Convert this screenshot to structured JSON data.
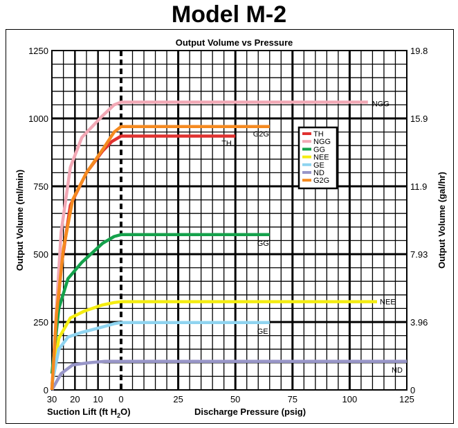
{
  "page_title": "Model M-2",
  "chart_data": {
    "type": "line",
    "title": "Output Volume vs Pressure",
    "ylabel": "Output Volume (ml/min)",
    "y2label": "Output Volume (gal/hr)",
    "xlabel_left": "Suction Lift (ft H",
    "xlabel_left_sub": "2",
    "xlabel_left_end": "O)",
    "xlabel_right": "Discharge Pressure (psig)",
    "ylim": [
      0,
      1250
    ],
    "yticks": [
      0,
      250,
      500,
      750,
      1000,
      1250
    ],
    "y2ticks": [
      "0",
      "3.96",
      "7.93",
      "11.9",
      "15.9",
      "19.8"
    ],
    "suction_ticks": [
      30,
      20,
      10,
      0
    ],
    "suction_range": [
      30,
      0
    ],
    "pressure_ticks": [
      0,
      25,
      50,
      75,
      100,
      125
    ],
    "pressure_range": [
      0,
      125
    ],
    "series": [
      {
        "name": "TH",
        "color": "#e0312f",
        "end_label": "TH",
        "end_psig": 50,
        "suction": [
          [
            30,
            0
          ],
          [
            28,
            250
          ],
          [
            26,
            450
          ],
          [
            22,
            680
          ],
          [
            15,
            800
          ],
          [
            8,
            880
          ],
          [
            4,
            915
          ],
          [
            0,
            935
          ]
        ],
        "pressure": [
          [
            0,
            935
          ],
          [
            50,
            935
          ]
        ]
      },
      {
        "name": "NGG",
        "color": "#f2a8b5",
        "end_label": "NGG",
        "end_psig": 108,
        "suction": [
          [
            30,
            0
          ],
          [
            28,
            300
          ],
          [
            26,
            580
          ],
          [
            22,
            820
          ],
          [
            17,
            930
          ],
          [
            8,
            1010
          ],
          [
            3,
            1050
          ],
          [
            0,
            1060
          ]
        ],
        "pressure": [
          [
            0,
            1060
          ],
          [
            108,
            1060
          ]
        ]
      },
      {
        "name": "GG",
        "color": "#14a14b",
        "end_label": "GG",
        "end_psig": 65,
        "suction": [
          [
            30,
            60
          ],
          [
            27,
            300
          ],
          [
            23,
            410
          ],
          [
            17,
            470
          ],
          [
            8,
            540
          ],
          [
            3,
            565
          ],
          [
            0,
            572
          ]
        ],
        "pressure": [
          [
            0,
            572
          ],
          [
            65,
            572
          ]
        ]
      },
      {
        "name": "NEE",
        "color": "#f4ec11",
        "end_label": "NEE",
        "end_psig": 112,
        "suction": [
          [
            30,
            20
          ],
          [
            27,
            190
          ],
          [
            22,
            265
          ],
          [
            16,
            290
          ],
          [
            8,
            313
          ],
          [
            3,
            322
          ],
          [
            0,
            325
          ]
        ],
        "pressure": [
          [
            0,
            325
          ],
          [
            112,
            325
          ]
        ]
      },
      {
        "name": "GE",
        "color": "#8fd4f0",
        "end_label": "GE",
        "end_psig": 65,
        "suction": [
          [
            30,
            20
          ],
          [
            27,
            150
          ],
          [
            23,
            195
          ],
          [
            17,
            212
          ],
          [
            8,
            232
          ],
          [
            3,
            244
          ],
          [
            0,
            248
          ]
        ],
        "pressure": [
          [
            0,
            248
          ],
          [
            65,
            248
          ]
        ]
      },
      {
        "name": "ND",
        "color": "#9896c8",
        "end_label": "ND",
        "end_psig": 125,
        "suction": [
          [
            30,
            0
          ],
          [
            26,
            60
          ],
          [
            21,
            92
          ],
          [
            14,
            100
          ],
          [
            7,
            105
          ],
          [
            0,
            105
          ]
        ],
        "pressure": [
          [
            0,
            105
          ],
          [
            125,
            105
          ]
        ]
      },
      {
        "name": "G2G",
        "color": "#f58a20",
        "end_label": "G2G",
        "end_psig": 65,
        "suction": [
          [
            30,
            0
          ],
          [
            28,
            280
          ],
          [
            25,
            520
          ],
          [
            21,
            700
          ],
          [
            15,
            800
          ],
          [
            8,
            885
          ],
          [
            3,
            950
          ],
          [
            0,
            970
          ]
        ],
        "pressure": [
          [
            0,
            970
          ],
          [
            65,
            970
          ]
        ]
      }
    ],
    "legend": [
      "TH",
      "NGG",
      "GG",
      "NEE",
      "GE",
      "ND",
      "G2G"
    ],
    "legend_position": "right, upper-middle",
    "grid": true
  }
}
